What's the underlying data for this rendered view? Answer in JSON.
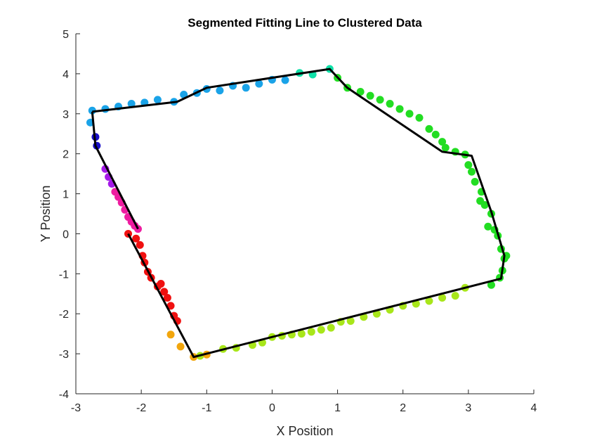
{
  "chart_data": {
    "type": "scatter",
    "title": "Segmented Fitting Line to Clustered Data",
    "xlabel": "X Position",
    "ylabel": "Y Position",
    "xlim": [
      -3,
      4
    ],
    "ylim": [
      -4,
      5
    ],
    "xticks": [
      "-3",
      "-2",
      "-1",
      "0",
      "1",
      "2",
      "3",
      "4"
    ],
    "yticks": [
      "-4",
      "-3",
      "-2",
      "-1",
      "0",
      "1",
      "2",
      "3",
      "4",
      "5"
    ],
    "grid": false,
    "legend": "none",
    "fit_line_color": "#000000",
    "fit_lines": [
      [
        [
          -2.75,
          3.05
        ],
        [
          -1.45,
          3.3
        ],
        [
          -1.0,
          3.65
        ],
        [
          0.88,
          4.12
        ],
        [
          1.15,
          3.65
        ],
        [
          2.6,
          2.05
        ],
        [
          3.05,
          1.95
        ],
        [
          3.35,
          0.55
        ],
        [
          3.55,
          -0.55
        ],
        [
          3.5,
          -1.12
        ],
        [
          -1.2,
          -3.08
        ],
        [
          -2.2,
          0.0
        ]
      ],
      [
        [
          -2.75,
          3.05
        ],
        [
          -2.7,
          2.2
        ],
        [
          -2.05,
          0.12
        ]
      ]
    ],
    "series": [
      {
        "color": "#1aa3e8",
        "x": [
          -2.78,
          -2.75,
          -2.55,
          -2.35,
          -2.15,
          -1.95,
          -1.75,
          -1.5,
          -1.35,
          -1.15,
          -1.0,
          -0.8,
          -0.6,
          -0.4,
          -0.2,
          0.0,
          0.2
        ],
        "y": [
          2.78,
          3.08,
          3.12,
          3.18,
          3.25,
          3.28,
          3.35,
          3.3,
          3.48,
          3.52,
          3.62,
          3.58,
          3.7,
          3.65,
          3.75,
          3.85,
          3.84
        ]
      },
      {
        "color": "#10e0a8",
        "x": [
          0.42,
          0.62,
          0.88
        ],
        "y": [
          4.02,
          3.98,
          4.12
        ]
      },
      {
        "color": "#22dd22",
        "x": [
          1.0,
          1.15,
          1.35,
          1.5,
          1.65,
          1.8,
          1.95,
          2.1,
          2.25,
          2.4,
          2.5,
          2.6,
          2.65,
          2.8,
          2.95,
          3.0,
          3.05,
          3.1,
          3.2,
          3.18,
          3.25,
          3.35,
          3.3,
          3.4,
          3.45,
          3.5,
          3.55,
          3.58,
          3.52,
          3.48,
          3.35
        ],
        "y": [
          3.9,
          3.65,
          3.55,
          3.45,
          3.35,
          3.25,
          3.12,
          3.0,
          2.9,
          2.62,
          2.48,
          2.3,
          2.15,
          2.05,
          1.98,
          1.72,
          1.55,
          1.3,
          1.05,
          0.82,
          0.72,
          0.5,
          0.18,
          0.1,
          -0.05,
          -0.38,
          -0.62,
          -0.55,
          -0.92,
          -1.1,
          -1.28
        ]
      },
      {
        "color": "#a8e61a",
        "x": [
          -1.1,
          -0.75,
          -0.55,
          -0.3,
          -0.15,
          0.0,
          0.15,
          0.3,
          0.45,
          0.6,
          0.75,
          0.9,
          1.05,
          1.2,
          1.4,
          1.6,
          1.8,
          2.0,
          2.2,
          2.4,
          2.6,
          2.8,
          2.95
        ],
        "y": [
          -3.05,
          -2.88,
          -2.85,
          -2.78,
          -2.72,
          -2.58,
          -2.55,
          -2.52,
          -2.5,
          -2.45,
          -2.4,
          -2.35,
          -2.2,
          -2.18,
          -2.08,
          -2.0,
          -1.9,
          -1.8,
          -1.75,
          -1.68,
          -1.6,
          -1.55,
          -1.35
        ]
      },
      {
        "color": "#f2a60d",
        "x": [
          -1.55,
          -1.4,
          -1.2,
          -1.0
        ],
        "y": [
          -2.52,
          -2.82,
          -3.08,
          -3.02
        ]
      },
      {
        "color": "#f01010",
        "x": [
          -2.2,
          -2.08,
          -2.02,
          -1.98,
          -1.95,
          -1.9,
          -1.85,
          -1.75,
          -1.7,
          -1.65,
          -1.6,
          -1.55,
          -1.5,
          -1.45
        ],
        "y": [
          0.0,
          -0.12,
          -0.28,
          -0.55,
          -0.72,
          -0.95,
          -1.1,
          -1.32,
          -1.25,
          -1.45,
          -1.6,
          -1.8,
          -2.05,
          -2.18
        ]
      },
      {
        "color": "#ee1ca0",
        "x": [
          -2.4,
          -2.35,
          -2.3,
          -2.25,
          -2.2,
          -2.15,
          -2.1,
          -2.05
        ],
        "y": [
          1.05,
          0.92,
          0.78,
          0.6,
          0.42,
          0.3,
          0.2,
          0.12
        ]
      },
      {
        "color": "#a51ae8",
        "x": [
          -2.55,
          -2.5,
          -2.45
        ],
        "y": [
          1.62,
          1.42,
          1.25
        ]
      },
      {
        "color": "#1a10c8",
        "x": [
          -2.7,
          -2.68
        ],
        "y": [
          2.42,
          2.2
        ]
      }
    ]
  }
}
